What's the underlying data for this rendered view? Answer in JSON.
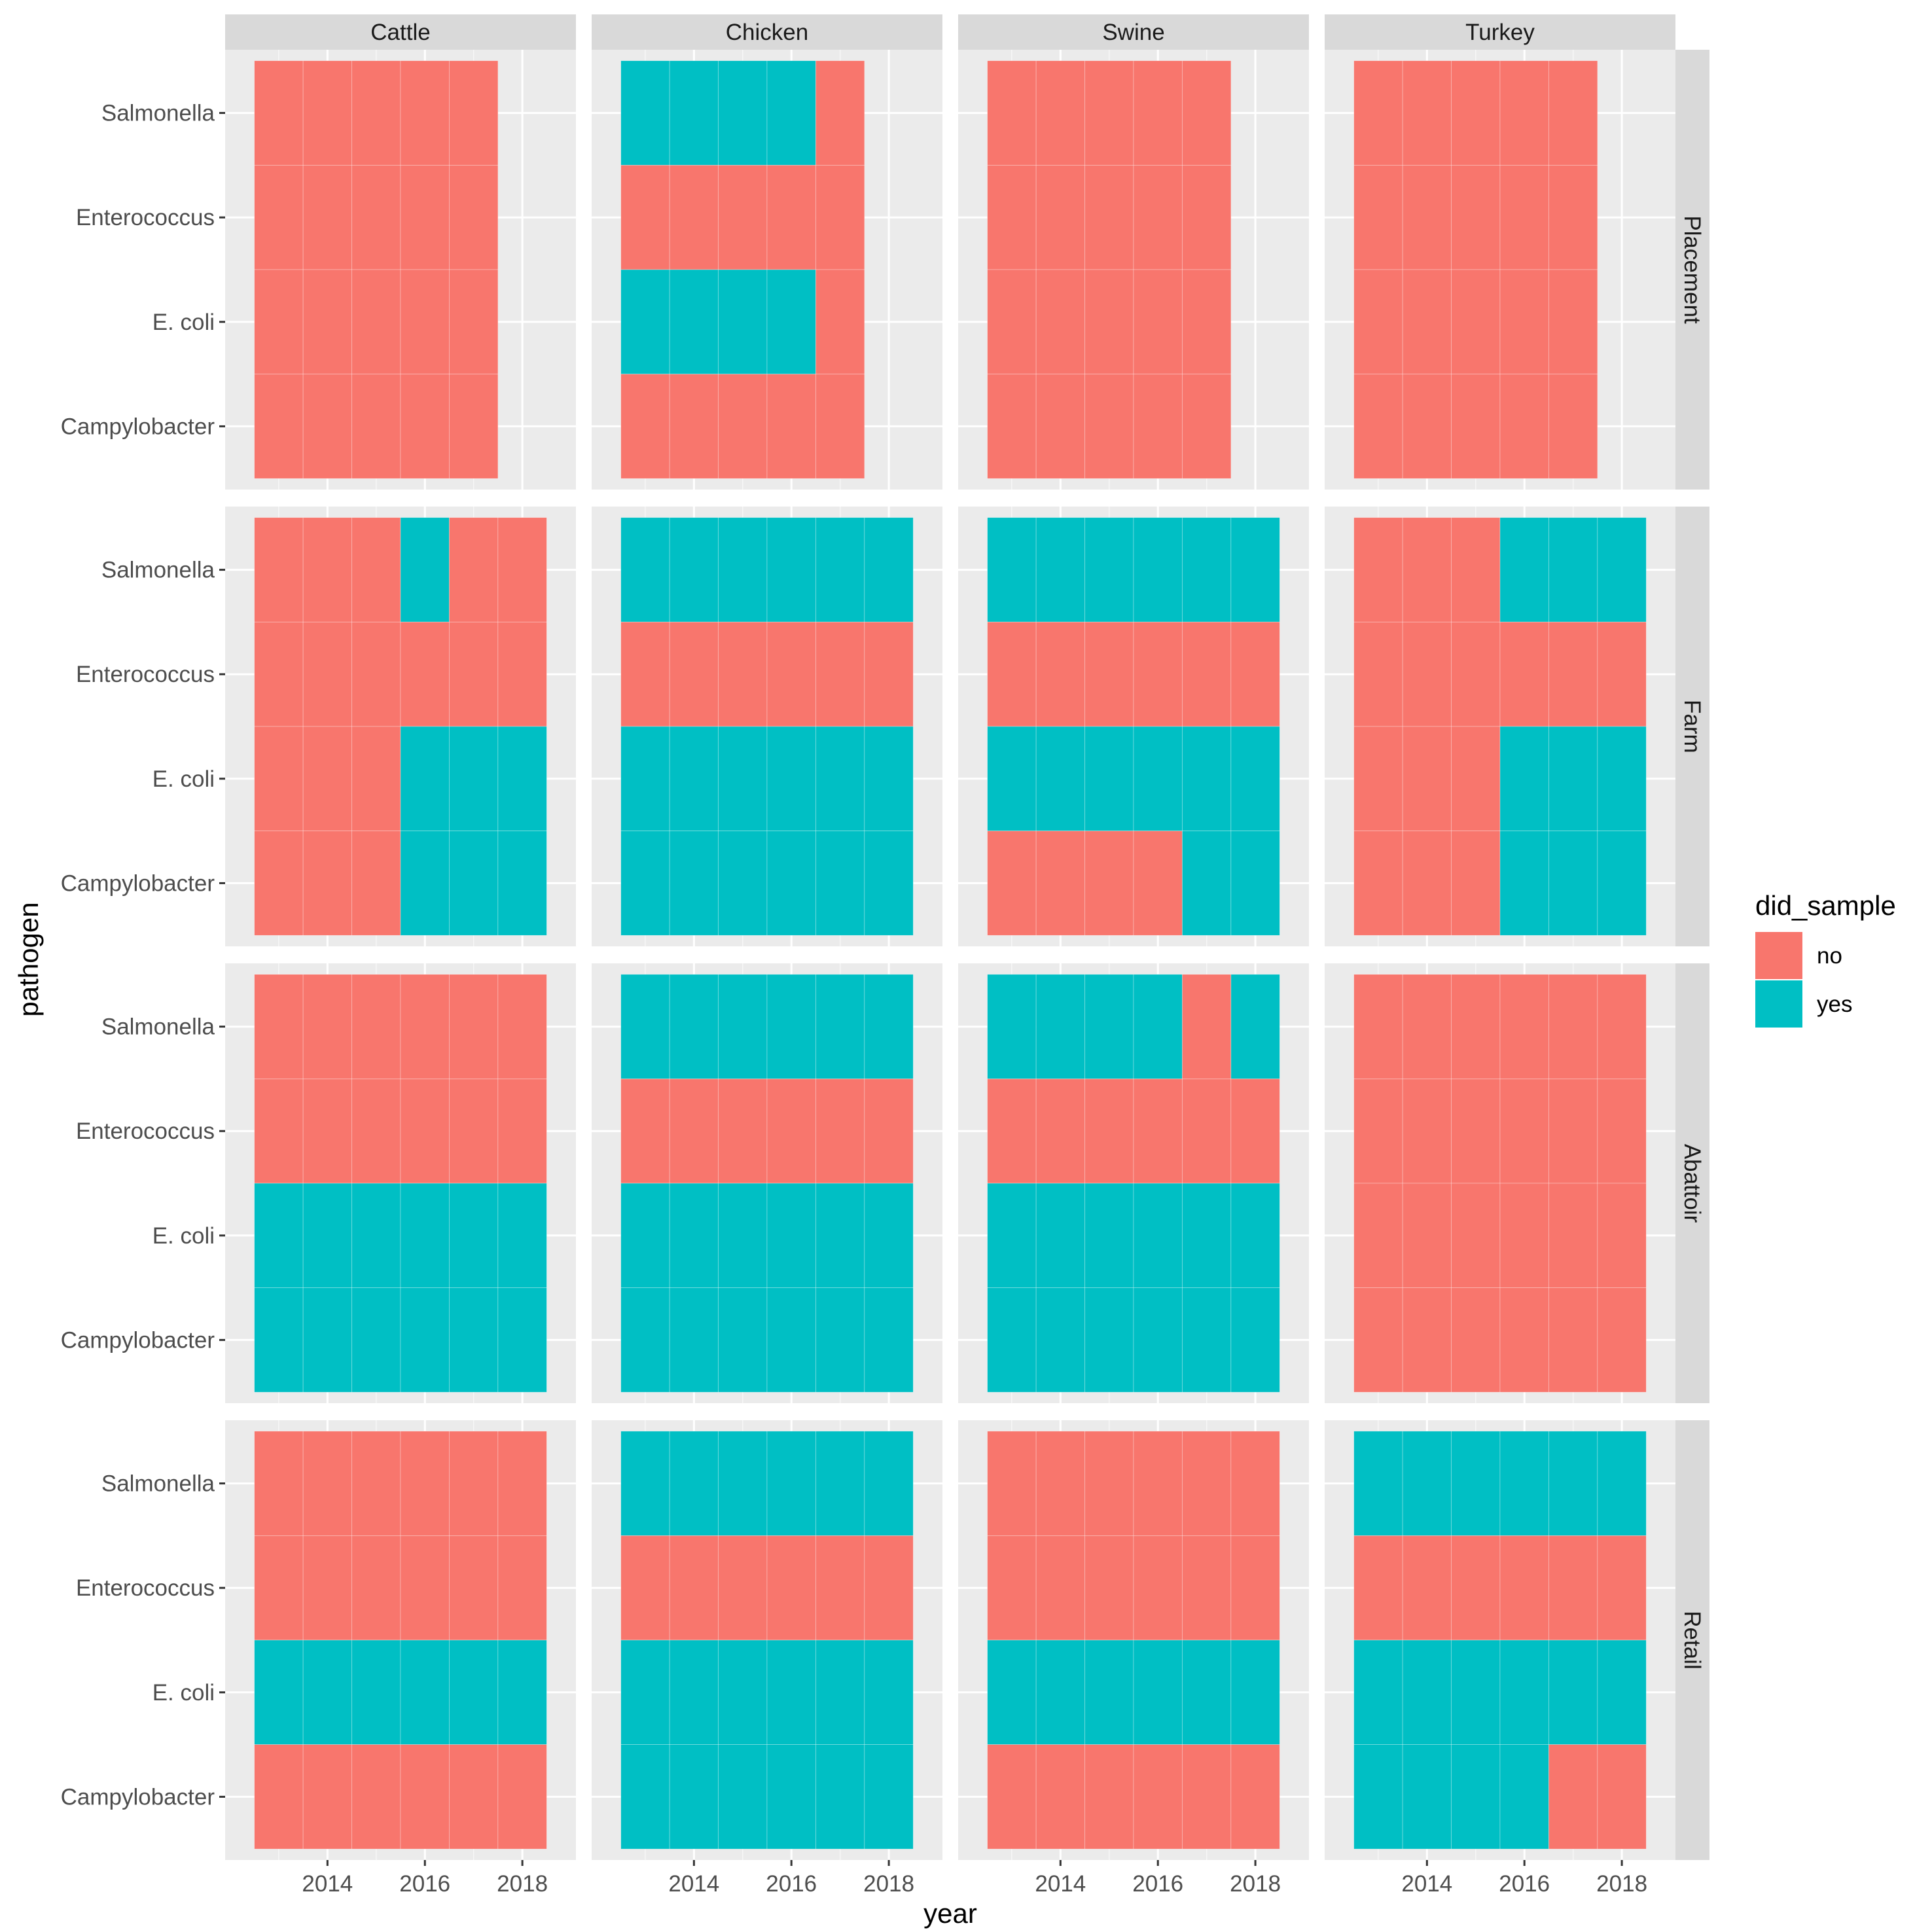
{
  "chart_data": {
    "type": "heatmap",
    "xlabel": "year",
    "ylabel": "pathogen",
    "x_ticks": [
      "2014",
      "2016",
      "2018"
    ],
    "years": [
      2013,
      2014,
      2015,
      2016,
      2017,
      2018
    ],
    "pathogens": [
      "Salmonella",
      "Enterococcus",
      "E. coli",
      "Campylobacter"
    ],
    "columns": [
      "Cattle",
      "Chicken",
      "Swine",
      "Turkey"
    ],
    "rows": [
      "Placement",
      "Farm",
      "Abattoir",
      "Retail"
    ],
    "legend": {
      "title": "did_sample",
      "entries": [
        {
          "label": "no",
          "color": "#F8766D"
        },
        {
          "label": "yes",
          "color": "#00BFC4"
        }
      ]
    },
    "colors": {
      "panel_bg": "#EBEBEB",
      "strip_bg": "#D9D9D9",
      "grid_major": "#FFFFFF",
      "no": "#F8766D",
      "yes": "#00BFC4"
    },
    "cells": {
      "Placement": {
        "Cattle": {
          "Salmonella": "nnnnn",
          "Enterococcus": "nnnnn",
          "E. coli": "nnnnn",
          "Campylobacter": "nnnnn"
        },
        "Chicken": {
          "Salmonella": "yyyyn",
          "Enterococcus": "nnnnn",
          "E. coli": "yyyyn",
          "Campylobacter": "nnnnn"
        },
        "Swine": {
          "Salmonella": "nnnnn",
          "Enterococcus": "nnnnn",
          "E. coli": "nnnnn",
          "Campylobacter": "nnnnn"
        },
        "Turkey": {
          "Salmonella": "nnnnn",
          "Enterococcus": "nnnnn",
          "E. coli": "nnnnn",
          "Campylobacter": "nnnnn"
        }
      },
      "Farm": {
        "Cattle": {
          "Salmonella": "nnnynn",
          "Enterococcus": "nnnnnn",
          "E. coli": "nnnyyy",
          "Campylobacter": "nnnyyy"
        },
        "Chicken": {
          "Salmonella": "yyyyyy",
          "Enterococcus": "nnnnnn",
          "E. coli": "yyyyyy",
          "Campylobacter": "yyyyyy"
        },
        "Swine": {
          "Salmonella": "yyyyyy",
          "Enterococcus": "nnnnnn",
          "E. coli": "yyyyyy",
          "Campylobacter": "nnnnyy"
        },
        "Turkey": {
          "Salmonella": "nnnyyy",
          "Enterococcus": "nnnnnn",
          "E. coli": "nnnyyy",
          "Campylobacter": "nnnyyy"
        }
      },
      "Abattoir": {
        "Cattle": {
          "Salmonella": "nnnnnn",
          "Enterococcus": "nnnnnn",
          "E. coli": "yyyyyy",
          "Campylobacter": "yyyyyy"
        },
        "Chicken": {
          "Salmonella": "yyyyyy",
          "Enterococcus": "nnnnnn",
          "E. coli": "yyyyyy",
          "Campylobacter": "yyyyyy"
        },
        "Swine": {
          "Salmonella": "yyyyny",
          "Enterococcus": "nnnnnn",
          "E. coli": "yyyyyy",
          "Campylobacter": "yyyyyy"
        },
        "Turkey": {
          "Salmonella": "nnnnnn",
          "Enterococcus": "nnnnnn",
          "E. coli": "nnnnnn",
          "Campylobacter": "nnnnnn"
        }
      },
      "Retail": {
        "Cattle": {
          "Salmonella": "nnnnnn",
          "Enterococcus": "nnnnnn",
          "E. coli": "yyyyyy",
          "Campylobacter": "nnnnnn"
        },
        "Chicken": {
          "Salmonella": "yyyyyy",
          "Enterococcus": "nnnnnn",
          "E. coli": "yyyyyy",
          "Campylobacter": "yyyyyy"
        },
        "Swine": {
          "Salmonella": "nnnnnn",
          "Enterococcus": "nnnnnn",
          "E. coli": "yyyyyy",
          "Campylobacter": "nnnnnn"
        },
        "Turkey": {
          "Salmonella": "yyyyyy",
          "Enterococcus": "nnnnnn",
          "E. coli": "yyyyyy",
          "Campylobacter": "yyyynn"
        }
      }
    }
  }
}
